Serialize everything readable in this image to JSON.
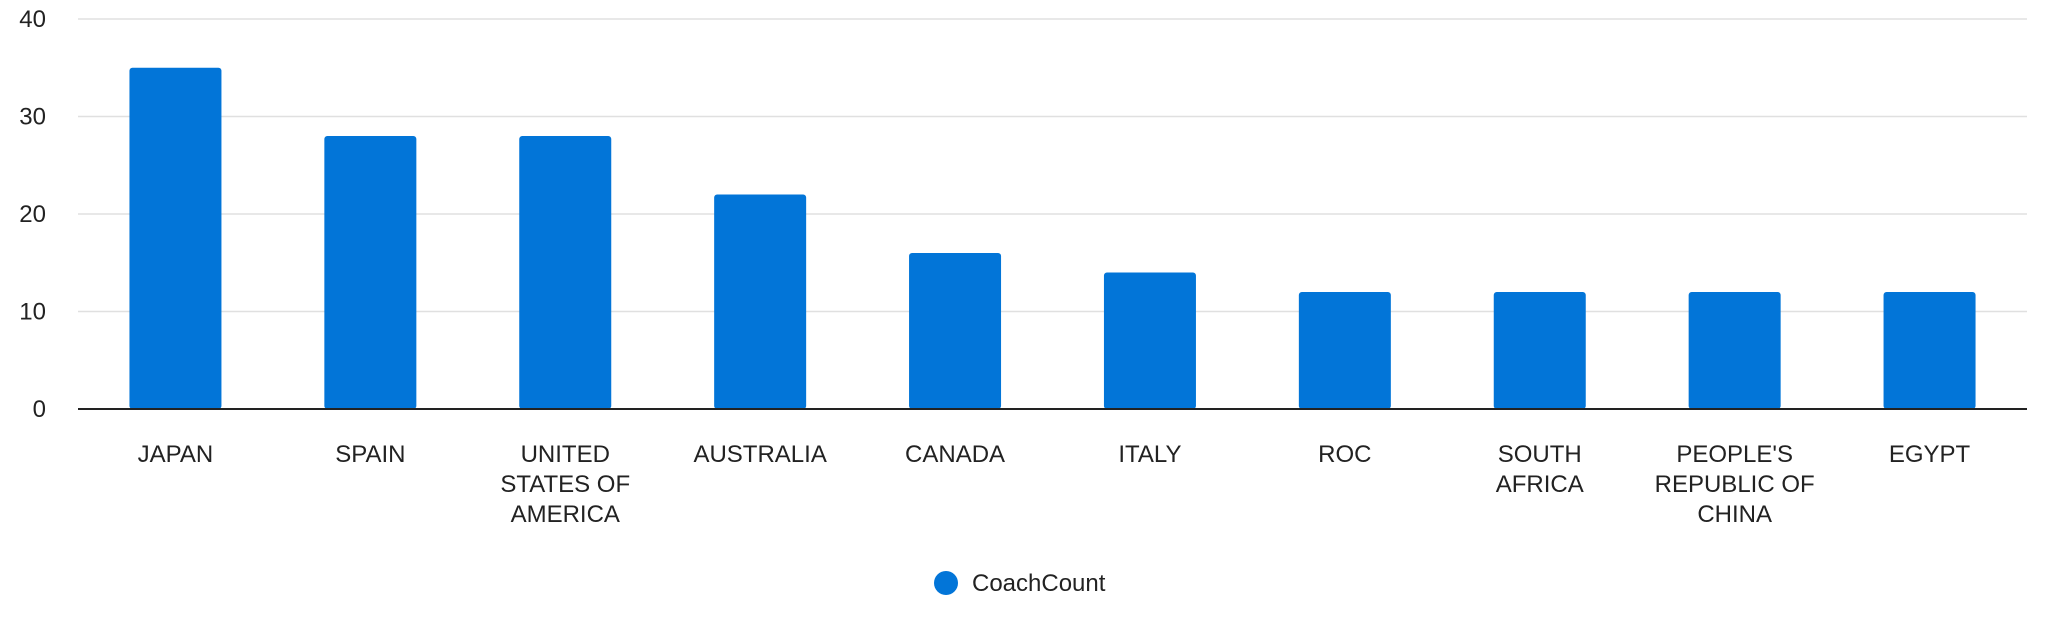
{
  "chart_data": {
    "type": "bar",
    "title": "",
    "xlabel": "",
    "ylabel": "",
    "categories": [
      "JAPAN",
      "SPAIN",
      "UNITED STATES OF AMERICA",
      "AUSTRALIA",
      "CANADA",
      "ITALY",
      "ROC",
      "SOUTH AFRICA",
      "PEOPLE'S REPUBLIC OF CHINA",
      "EGYPT"
    ],
    "category_lines": [
      [
        "JAPAN"
      ],
      [
        "SPAIN"
      ],
      [
        "UNITED",
        "STATES OF",
        "AMERICA"
      ],
      [
        "AUSTRALIA"
      ],
      [
        "CANADA"
      ],
      [
        "ITALY"
      ],
      [
        "ROC"
      ],
      [
        "SOUTH",
        "AFRICA"
      ],
      [
        "PEOPLE'S",
        "REPUBLIC OF",
        "CHINA"
      ],
      [
        "EGYPT"
      ]
    ],
    "series": [
      {
        "name": "CoachCount",
        "color": "#0275d8",
        "values": [
          35,
          28,
          28,
          22,
          16,
          14,
          12,
          12,
          12,
          12
        ]
      }
    ],
    "ylim": [
      0,
      40
    ],
    "yticks": [
      "0",
      "10",
      "20",
      "30",
      "40"
    ],
    "grid": true,
    "legend_position": "bottom-center"
  },
  "colors": {
    "gridline": "#e0e0e0",
    "axis": "#222222",
    "text": "#222222"
  }
}
